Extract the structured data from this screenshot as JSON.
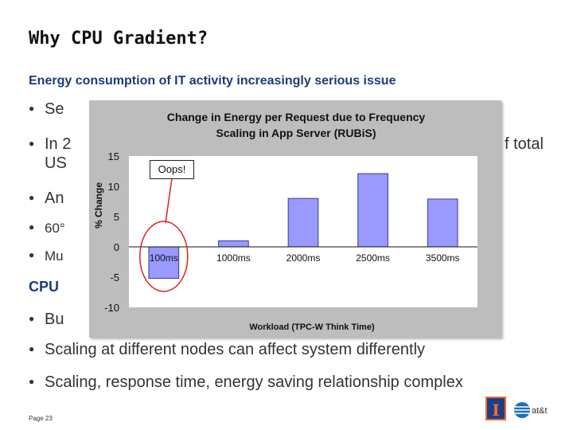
{
  "slide": {
    "title": "Why CPU Gradient?",
    "subtitle": "Energy consumption of IT activity increasingly serious issue",
    "bullets": [
      {
        "text": "Se",
        "right_text": ""
      },
      {
        "text": "In 2",
        "right_text": "f total"
      },
      {
        "text": "US",
        "right_text": ""
      },
      {
        "text": "An",
        "right_text": ""
      },
      {
        "text": "60°",
        "right_text": ""
      },
      {
        "text": "Mu",
        "right_text": ""
      }
    ],
    "cpu_heading": "CPU",
    "lower_bullets": [
      {
        "text": "Bu"
      },
      {
        "text": "Scaling at different nodes can affect system differently"
      },
      {
        "text": "Scaling, response time, energy saving relationship complex"
      }
    ],
    "footer": "Page 23",
    "logo_illinois_letter": "I",
    "logo_att_text": "at&t"
  },
  "annotation": {
    "text": "Oops!",
    "color": "#e0201b"
  },
  "colors": {
    "bar_fill": "#9999ff",
    "bar_stroke": "#3a3aa0",
    "chart_bg": "#bdbdbd",
    "plot_bg": "#ffffff"
  },
  "chart_data": {
    "type": "bar",
    "title": "Change in Energy per Request due to Frequency Scaling in App Server (RUBiS)",
    "xlabel": "Workload (TPC-W Think Time)",
    "ylabel": "% Change",
    "categories": [
      "100ms",
      "1000ms",
      "2000ms",
      "2500ms",
      "3500ms"
    ],
    "values": [
      -5.2,
      1.0,
      8.0,
      12.1,
      7.9
    ],
    "ylim": [
      -10,
      15
    ],
    "yticks": [
      "15",
      "10",
      "5",
      "0",
      "-5",
      "-10"
    ],
    "grid": false,
    "legend": "none"
  }
}
